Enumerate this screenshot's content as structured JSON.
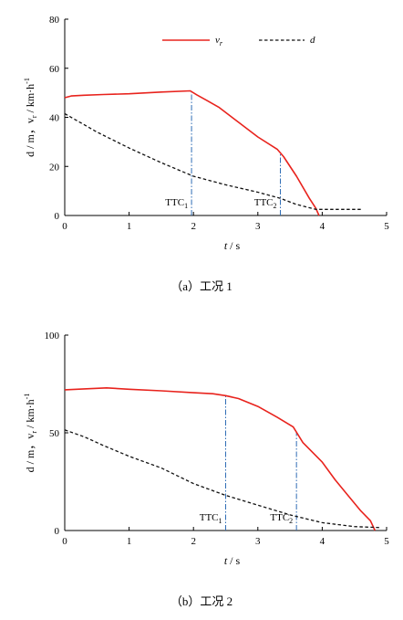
{
  "chart_data": [
    {
      "type": "line",
      "caption": "（a）工况 1",
      "ylabel_main": "d / m，v",
      "ylabel_sub": "r",
      "ylabel_unit": " / km·h",
      "ylabel_sup": "-1",
      "xlabel_var": "t",
      "xlabel_unit": " / s",
      "xlim": [
        0,
        5
      ],
      "ylim": [
        0,
        80
      ],
      "xticks": [
        "0",
        "1",
        "2",
        "3",
        "4",
        "5"
      ],
      "yticks": [
        "0",
        "20",
        "40",
        "60",
        "80"
      ],
      "legend_position": "top",
      "series": [
        {
          "name": "v",
          "name_sub": "r",
          "color": "#e8231d",
          "dash": "solid",
          "x": [
            0,
            0.1,
            0.3,
            0.6,
            1.0,
            1.5,
            1.95,
            2.05,
            2.2,
            2.4,
            2.7,
            3.0,
            3.3,
            3.4,
            3.6,
            3.8,
            3.9,
            3.95
          ],
          "y": [
            48,
            48.7,
            49,
            49.3,
            49.6,
            50.3,
            50.8,
            49.2,
            47,
            44,
            38,
            32,
            27,
            24,
            16,
            7,
            3,
            0
          ]
        },
        {
          "name": "d",
          "color": "#111111",
          "dash": "dashed",
          "x": [
            0,
            0.2,
            0.5,
            1.0,
            1.5,
            2.0,
            2.5,
            3.0,
            3.35,
            3.6,
            3.9,
            4.2,
            4.6
          ],
          "y": [
            41.5,
            38.5,
            34,
            27.5,
            21.5,
            16,
            12.5,
            9.5,
            7,
            4.5,
            2.5,
            2.5,
            2.5
          ]
        }
      ],
      "markers": [
        {
          "label": "TTC",
          "sub": "1",
          "x": 1.97
        },
        {
          "label": "TTC",
          "sub": "2",
          "x": 3.35
        }
      ],
      "marker_color": "#2f6db5"
    },
    {
      "type": "line",
      "caption": "（b）工况 2",
      "ylabel_main": "d / m，v",
      "ylabel_sub": "r",
      "ylabel_unit": " / km·h",
      "ylabel_sup": "-1",
      "xlabel_var": "t",
      "xlabel_unit": " / s",
      "xlim": [
        0,
        5
      ],
      "ylim": [
        0,
        100
      ],
      "xticks": [
        "0",
        "1",
        "2",
        "3",
        "4",
        "5"
      ],
      "yticks": [
        "0",
        "50",
        "100"
      ],
      "series": [
        {
          "name": "v",
          "name_sub": "r",
          "color": "#e8231d",
          "dash": "solid",
          "x": [
            0,
            0.3,
            0.65,
            1.0,
            1.5,
            2.0,
            2.3,
            2.5,
            2.7,
            3.0,
            3.3,
            3.55,
            3.7,
            4.0,
            4.2,
            4.4,
            4.6,
            4.75,
            4.82
          ],
          "y": [
            72,
            72.5,
            73,
            72.3,
            71.5,
            70.5,
            70,
            69,
            67.5,
            63.5,
            58,
            53,
            45,
            35,
            26,
            18,
            10,
            5,
            0
          ]
        },
        {
          "name": "d",
          "color": "#111111",
          "dash": "dashed",
          "x": [
            0,
            0.3,
            0.6,
            1.0,
            1.5,
            2.0,
            2.5,
            3.0,
            3.5,
            4.0,
            4.5,
            4.9
          ],
          "y": [
            51.5,
            48,
            43.5,
            38,
            32,
            24,
            18,
            13,
            8,
            4,
            2,
            1.5
          ]
        }
      ],
      "markers": [
        {
          "label": "TTC",
          "sub": "1",
          "x": 2.5
        },
        {
          "label": "TTC",
          "sub": "2",
          "x": 3.6
        }
      ],
      "marker_color": "#2f6db5"
    }
  ]
}
